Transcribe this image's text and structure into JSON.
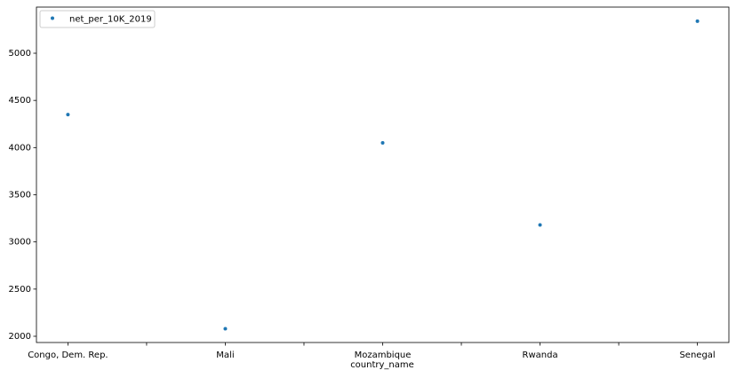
{
  "chart_data": {
    "type": "scatter",
    "categories": [
      "Congo, Dem. Rep.",
      "Mali",
      "Mozambique",
      "Rwanda",
      "Senegal"
    ],
    "series": [
      {
        "name": "net_per_10K_2019",
        "color": "#1f77b4",
        "values": [
          4350,
          2080,
          4050,
          3180,
          5340
        ]
      }
    ],
    "x_label": "country_name",
    "xlim": [
      -0.2,
      4.2
    ],
    "minor_xticks": [
      0.5,
      1.5,
      2.5,
      3.5
    ],
    "ylim": [
      1934,
      5489
    ],
    "yticks": [
      2000,
      2500,
      3000,
      3500,
      4000,
      4500,
      5000
    ],
    "grid": false,
    "legend": "upper-left"
  }
}
